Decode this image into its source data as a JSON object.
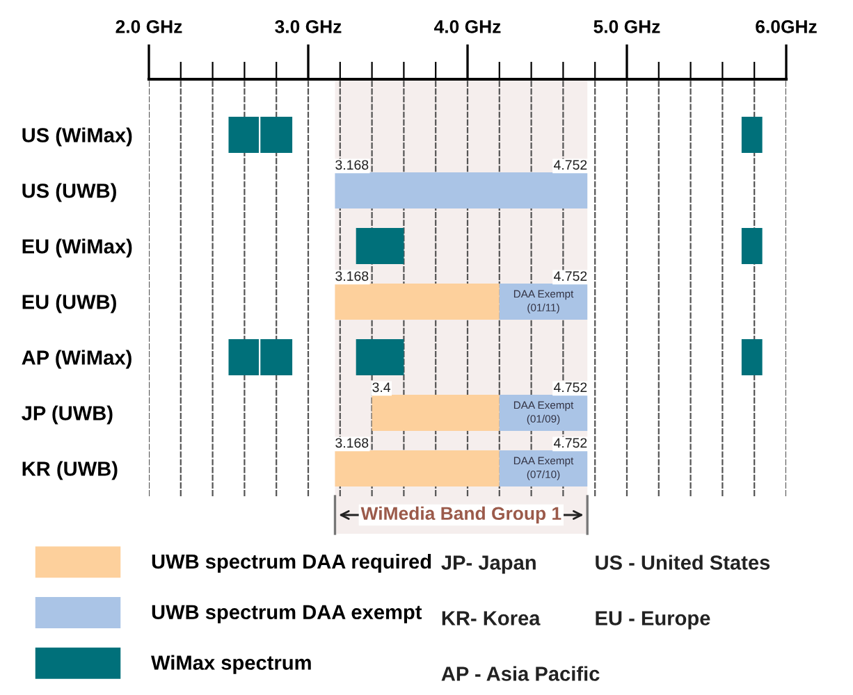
{
  "chart_data": {
    "type": "bar",
    "orientation": "horizontal",
    "categories": [
      "US (WiMax)",
      "US (UWB)",
      "EU (WiMax)",
      "EU (UWB)",
      "AP (WiMax)",
      "JP (UWB)",
      "KR (UWB)"
    ],
    "series": [
      {
        "name": "UWB spectrum DAA required",
        "color": "#fdd09c",
        "base": [
          null,
          null,
          null,
          3.168,
          null,
          3.4,
          3.168
        ],
        "values": [
          null,
          null,
          null,
          1.032,
          null,
          0.8,
          1.032
        ]
      },
      {
        "name": "UWB spectrum DAA exempt",
        "color": "#aac4e6",
        "base": [
          null,
          3.168,
          null,
          4.2,
          null,
          4.2,
          4.2
        ],
        "values": [
          null,
          1.584,
          null,
          0.552,
          null,
          0.552,
          0.552
        ],
        "value_labels": [
          null,
          null,
          null,
          "DAA Exempt\n(01/11)",
          null,
          "DAA Exempt\n(01/09)",
          "DAA Exempt\n(07/10)"
        ]
      },
      {
        "name": "WiMax spectrum",
        "color": "#00707a",
        "base": [
          2.5,
          null,
          null,
          null,
          2.5,
          null,
          null
        ],
        "values": [
          0.19,
          null,
          null,
          null,
          0.19,
          null,
          null
        ]
      },
      {
        "color": "#00707a",
        "base": [
          2.7,
          null,
          3.3,
          null,
          2.7,
          null,
          null
        ],
        "values": [
          0.2,
          null,
          0.3,
          null,
          0.2,
          null,
          null
        ]
      },
      {
        "color": "#00707a",
        "base": [
          null,
          null,
          null,
          null,
          3.3,
          null,
          null
        ],
        "values": [
          null,
          null,
          null,
          null,
          0.3,
          null,
          null
        ]
      },
      {
        "color": "#00707a",
        "base": [
          5.72,
          null,
          5.72,
          null,
          5.72,
          null,
          null
        ],
        "values": [
          0.13,
          null,
          0.13,
          null,
          0.13,
          null,
          null
        ]
      }
    ],
    "xlim": [
      2.0,
      6.0
    ],
    "xticks": [
      {
        "value": 2.0,
        "label": "2.0 GHz"
      },
      {
        "value": 2.2,
        "label": null
      },
      {
        "value": 2.4,
        "label": null
      },
      {
        "value": 2.6,
        "label": null
      },
      {
        "value": 2.8,
        "label": null
      },
      {
        "value": 3.0,
        "label": "3.0 GHz"
      },
      {
        "value": 3.2,
        "label": null
      },
      {
        "value": 3.4,
        "label": null
      },
      {
        "value": 3.6,
        "label": null
      },
      {
        "value": 3.8,
        "label": null
      },
      {
        "value": 4.0,
        "label": "4.0 GHz"
      },
      {
        "value": 4.2,
        "label": null
      },
      {
        "value": 4.4,
        "label": null
      },
      {
        "value": 4.6,
        "label": null
      },
      {
        "value": 4.8,
        "label": null
      },
      {
        "value": 5.0,
        "label": "5.0 GHz"
      },
      {
        "value": 5.2,
        "label": null
      },
      {
        "value": 5.4,
        "label": null
      },
      {
        "value": 5.6,
        "label": null
      },
      {
        "value": 5.8,
        "label": null
      },
      {
        "value": 6.0,
        "label": "6.0GHz"
      }
    ],
    "grid": "x",
    "legend": "bottom",
    "bands": [
      {
        "axis": "x",
        "from": 3.168,
        "to": 4.752,
        "label": "WiMedia Band Group 1",
        "color": "#9b5a4a"
      }
    ],
    "annotations": [
      {
        "text": "3.168",
        "x": 3.168,
        "y": "US (UWB)"
      },
      {
        "text": "4.752",
        "x": 4.752,
        "y": "US (UWB)"
      },
      {
        "text": "3.168",
        "x": 3.168,
        "y": "EU (UWB)"
      },
      {
        "text": "4.752",
        "x": 4.752,
        "y": "EU (UWB)"
      },
      {
        "text": "3.4",
        "x": 3.4,
        "y": "JP (UWB)"
      },
      {
        "text": "4.752",
        "x": 4.752,
        "y": "JP (UWB)"
      },
      {
        "text": "3.168",
        "x": 3.168,
        "y": "KR (UWB)"
      },
      {
        "text": "4.752",
        "x": 4.752,
        "y": "KR (UWB)"
      },
      "JP- Japan",
      "KR- Korea",
      "AP - Asia Pacific",
      "US - United States",
      "EU - Europe"
    ]
  }
}
